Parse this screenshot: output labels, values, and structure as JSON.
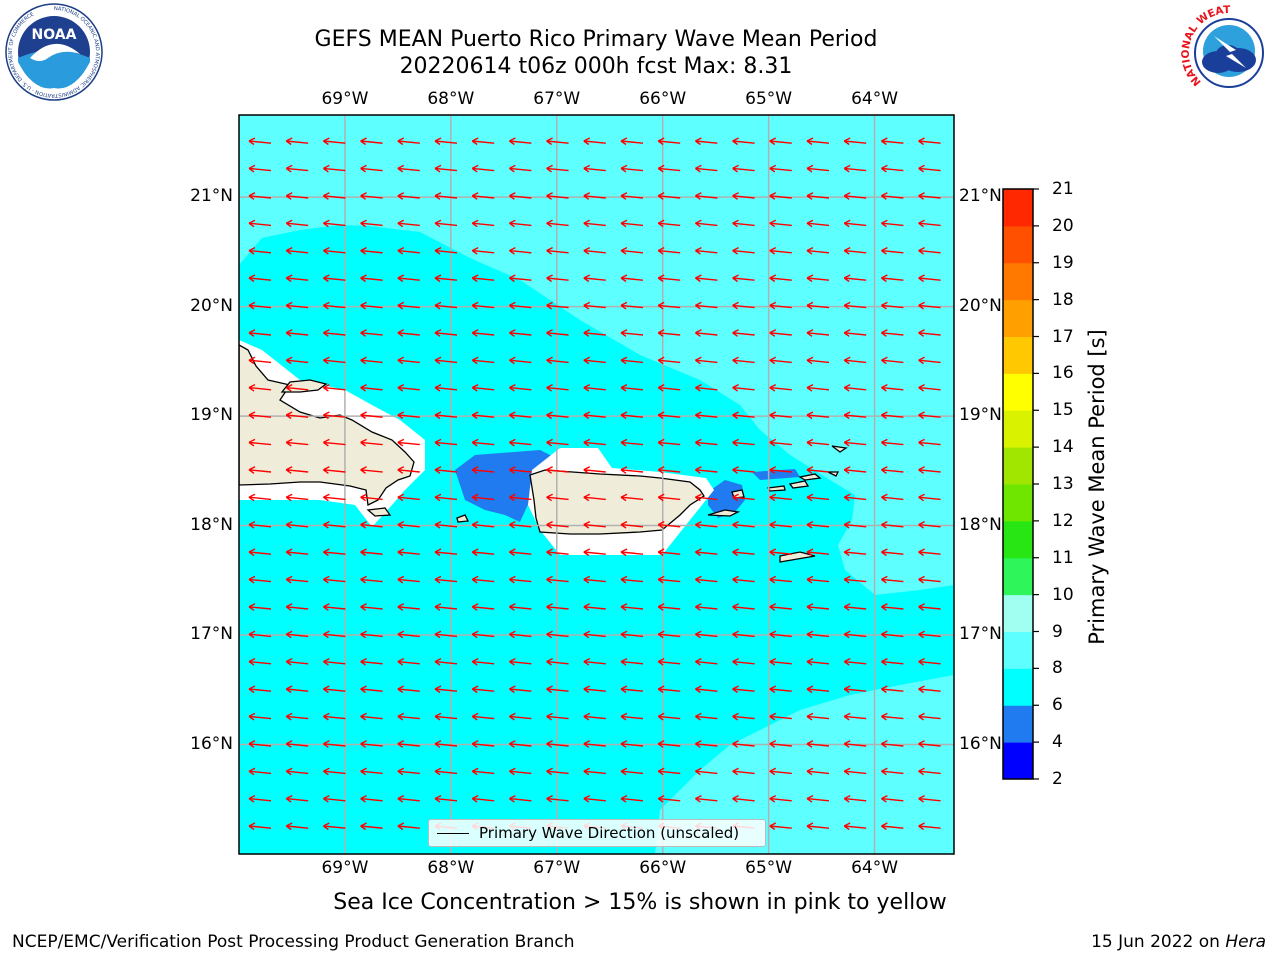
{
  "header": {
    "title_line1": "GEFS MEAN Puerto Rico Primary Wave Mean Period",
    "title_line2": "20220614 t06z 000h fcst   Max: 8.31"
  },
  "logos": {
    "left": {
      "text": "NOAA",
      "ring_text": "NATIONAL OCEANIC AND ATMOSPHERIC ADMINISTRATION · U.S. DEPARTMENT OF COMMERCE",
      "icon": "noaa-logo"
    },
    "right": {
      "ring_text": "NATIONAL WEATHER SERVICE",
      "icon": "nws-logo"
    }
  },
  "map": {
    "lon_labels": [
      "69°W",
      "68°W",
      "67°W",
      "66°W",
      "65°W",
      "64°W"
    ],
    "lat_labels": [
      "21°N",
      "20°N",
      "19°N",
      "18°N",
      "17°N",
      "16°N"
    ],
    "lon_range": [
      -70.0,
      -63.25
    ],
    "lat_range": [
      15.0,
      21.75
    ],
    "gridlines": true,
    "vector_field": {
      "name": "Primary Wave Direction",
      "color": "#ff0000",
      "direction": "from east (pointing west)"
    },
    "colors": {
      "land": "#efedda",
      "coast": "#000000",
      "grid": "#b0b0b0"
    }
  },
  "legend": {
    "label": "Primary Wave Direction (unscaled)",
    "placement": "bottom-center"
  },
  "colorbar": {
    "label": "Primary Wave Mean Period [s]",
    "ticks": [
      "21",
      "20",
      "19",
      "18",
      "17",
      "16",
      "15",
      "14",
      "13",
      "12",
      "11",
      "10",
      "9",
      "8",
      "6",
      "4",
      "2"
    ],
    "levels": [
      2,
      4,
      6,
      8,
      9,
      10,
      11,
      12,
      13,
      14,
      15,
      16,
      17,
      18,
      19,
      20,
      21
    ],
    "colors": [
      "#0000ff",
      "#1f7bef",
      "#00ffff",
      "#5effff",
      "#a0fff0",
      "#2ef55a",
      "#28e514",
      "#6ee600",
      "#a0e600",
      "#d8f200",
      "#ffff00",
      "#ffc800",
      "#ffa000",
      "#ff7800",
      "#ff5000",
      "#ff2800"
    ]
  },
  "footer": {
    "note": "Sea Ice Concentration > 15% is shown in pink to yellow",
    "left": "NCEP/EMC/Verification Post Processing Product Generation Branch",
    "right_prefix": "15 Jun 2022 on ",
    "right_host": "Hera"
  }
}
